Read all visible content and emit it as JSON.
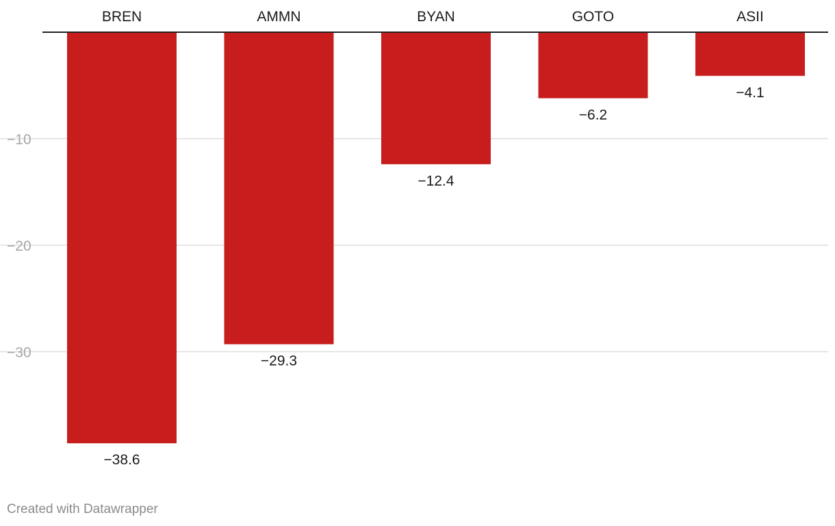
{
  "chart_data": {
    "type": "bar",
    "categories": [
      "BREN",
      "AMMN",
      "BYAN",
      "GOTO",
      "ASII"
    ],
    "values": [
      -38.6,
      -29.3,
      -12.4,
      -6.2,
      -4.1
    ],
    "value_labels": [
      "−38.6",
      "−29.3",
      "−12.4",
      "−6.2",
      "−4.1"
    ],
    "ylim": [
      -40,
      0
    ],
    "yticks": [
      -10,
      -20,
      -30
    ],
    "ytick_labels": [
      "−10",
      "−20",
      "−30"
    ],
    "grid": true,
    "bar_color": "#c81d1d",
    "category_label_position": "top"
  },
  "footer": {
    "credit": "Created with Datawrapper"
  }
}
